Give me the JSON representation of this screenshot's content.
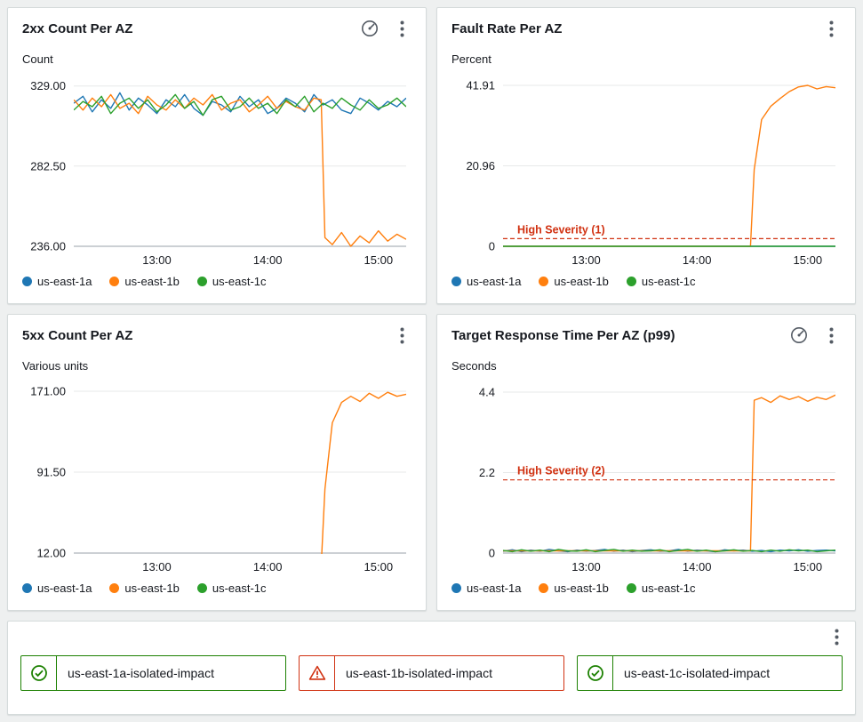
{
  "colors": {
    "series_blue": "#1f77b4",
    "series_orange": "#ff7f0e",
    "series_green": "#2ca02c",
    "threshold_red": "#d13212",
    "status_ok_green": "#1d8102",
    "status_alarm_red": "#d13212",
    "axis_line": "#98a2a8",
    "grid_line": "#e7e9e9",
    "text": "#16191f",
    "icon_gray": "#545b64",
    "panel_bg": "#ffffff",
    "page_bg": "#eef0f0"
  },
  "chart_data": [
    {
      "type": "line",
      "title": "2xx Count Per AZ",
      "unit": "Count",
      "y": {
        "min": 236,
        "max": 334,
        "ticks": [
          {
            "label": "329.00",
            "value": 329
          },
          {
            "label": "282.50",
            "value": 282.5
          },
          {
            "label": "236.00",
            "value": 236
          }
        ]
      },
      "x": {
        "min": 0,
        "max": 180,
        "start": 0,
        "step": 5,
        "ticks": [
          {
            "label": "13:00",
            "value": 45
          },
          {
            "label": "14:00",
            "value": 105
          },
          {
            "label": "15:00",
            "value": 165
          }
        ]
      },
      "series": [
        {
          "name": "us-east-1a",
          "color": "#1f77b4",
          "values": [
            319,
            323,
            314,
            321,
            316,
            325,
            315,
            322,
            318,
            313,
            321,
            317,
            324,
            316,
            312,
            320,
            318,
            314,
            323,
            317,
            321,
            313,
            316,
            322,
            319,
            314,
            324,
            318,
            321,
            315,
            313,
            322,
            319,
            315,
            320,
            317,
            322
          ]
        },
        {
          "name": "us-east-1b",
          "color": "#ff7f0e",
          "x": [
            0,
            5,
            10,
            15,
            20,
            25,
            30,
            35,
            40,
            45,
            50,
            55,
            60,
            65,
            70,
            75,
            80,
            85,
            90,
            95,
            100,
            105,
            110,
            115,
            120,
            125,
            130,
            134,
            136,
            140,
            145,
            150,
            155,
            160,
            165,
            170,
            175,
            180
          ],
          "values": [
            321,
            315,
            322,
            317,
            324,
            316,
            319,
            313,
            323,
            318,
            315,
            321,
            316,
            322,
            318,
            324,
            315,
            319,
            321,
            314,
            318,
            323,
            316,
            320,
            317,
            315,
            322,
            321,
            241,
            237,
            244,
            236,
            242,
            238,
            245,
            239,
            243,
            240
          ]
        },
        {
          "name": "us-east-1c",
          "color": "#2ca02c",
          "values": [
            315,
            320,
            317,
            323,
            313,
            319,
            322,
            316,
            321,
            314,
            318,
            324,
            316,
            320,
            312,
            321,
            323,
            315,
            317,
            322,
            316,
            319,
            313,
            321,
            317,
            323,
            314,
            319,
            316,
            322,
            318,
            315,
            321,
            316,
            318,
            322,
            317
          ]
        }
      ],
      "legend": [
        {
          "label": "us-east-1a",
          "color": "#1f77b4"
        },
        {
          "label": "us-east-1b",
          "color": "#ff7f0e"
        },
        {
          "label": "us-east-1c",
          "color": "#2ca02c"
        }
      ]
    },
    {
      "type": "line",
      "title": "Fault Rate Per AZ",
      "unit": "Percent",
      "threshold": {
        "value": 2,
        "label": "High Severity (1)",
        "color": "#d13212"
      },
      "y": {
        "min": 0,
        "max": 44,
        "ticks": [
          {
            "label": "41.91",
            "value": 41.91
          },
          {
            "label": "20.96",
            "value": 20.96
          },
          {
            "label": "0",
            "value": 0
          }
        ]
      },
      "x": {
        "min": 0,
        "max": 180,
        "start": 0,
        "step": 5,
        "ticks": [
          {
            "label": "13:00",
            "value": 45
          },
          {
            "label": "14:00",
            "value": 105
          },
          {
            "label": "15:00",
            "value": 165
          }
        ]
      },
      "series": [
        {
          "name": "us-east-1a",
          "color": "#1f77b4",
          "values": [
            0,
            0,
            0,
            0,
            0,
            0,
            0,
            0,
            0,
            0,
            0,
            0,
            0,
            0,
            0,
            0,
            0,
            0,
            0,
            0,
            0,
            0,
            0,
            0,
            0,
            0,
            0,
            0,
            0,
            0,
            0,
            0,
            0,
            0,
            0,
            0,
            0
          ]
        },
        {
          "name": "us-east-1b",
          "color": "#ff7f0e",
          "x": [
            0,
            5,
            10,
            15,
            20,
            25,
            30,
            35,
            40,
            45,
            50,
            55,
            60,
            65,
            70,
            75,
            80,
            85,
            90,
            95,
            100,
            105,
            110,
            115,
            120,
            125,
            130,
            134,
            136,
            140,
            145,
            150,
            155,
            160,
            165,
            170,
            175,
            180
          ],
          "values": [
            0,
            0,
            0,
            0,
            0,
            0,
            0,
            0,
            0,
            0,
            0,
            0,
            0,
            0,
            0,
            0,
            0,
            0,
            0,
            0,
            0,
            0,
            0,
            0,
            0,
            0,
            0,
            0,
            20,
            33,
            36.5,
            38.5,
            40.3,
            41.5,
            41.91,
            41,
            41.6,
            41.3
          ]
        },
        {
          "name": "us-east-1c",
          "color": "#2ca02c",
          "values": [
            0,
            0,
            0,
            0,
            0,
            0,
            0,
            0,
            0,
            0,
            0,
            0,
            0,
            0,
            0,
            0,
            0,
            0,
            0,
            0,
            0,
            0,
            0,
            0,
            0,
            0,
            0,
            0,
            0,
            0,
            0,
            0,
            0,
            0,
            0,
            0,
            0
          ]
        }
      ],
      "legend": [
        {
          "label": "us-east-1a",
          "color": "#1f77b4"
        },
        {
          "label": "us-east-1b",
          "color": "#ff7f0e"
        },
        {
          "label": "us-east-1c",
          "color": "#2ca02c"
        }
      ]
    },
    {
      "type": "line",
      "title": "5xx Count Per AZ",
      "unit": "Various units",
      "y": {
        "min": 12,
        "max": 178,
        "ticks": [
          {
            "label": "171.00",
            "value": 171
          },
          {
            "label": "91.50",
            "value": 91.5
          },
          {
            "label": "12.00",
            "value": 12
          }
        ]
      },
      "x": {
        "min": 0,
        "max": 180,
        "start": 0,
        "step": 5,
        "ticks": [
          {
            "label": "13:00",
            "value": 45
          },
          {
            "label": "14:00",
            "value": 105
          },
          {
            "label": "15:00",
            "value": 165
          }
        ]
      },
      "series": [
        {
          "name": "us-east-1a",
          "color": "#1f77b4",
          "values": [
            0,
            0,
            0,
            0,
            0,
            0,
            0,
            0,
            0,
            0,
            0,
            0,
            0,
            0,
            0,
            0,
            0,
            0,
            0,
            0,
            0,
            0,
            0,
            0,
            0,
            0,
            0,
            0,
            0,
            0,
            0,
            0,
            0,
            0,
            0,
            0,
            0
          ]
        },
        {
          "name": "us-east-1b",
          "color": "#ff7f0e",
          "x": [
            0,
            5,
            10,
            15,
            20,
            25,
            30,
            35,
            40,
            45,
            50,
            55,
            60,
            65,
            70,
            75,
            80,
            85,
            90,
            95,
            100,
            105,
            110,
            115,
            120,
            125,
            130,
            134,
            136,
            140,
            145,
            150,
            155,
            160,
            165,
            170,
            175,
            180
          ],
          "values": [
            0,
            0,
            0,
            0,
            0,
            0,
            0,
            0,
            0,
            0,
            0,
            0,
            0,
            0,
            0,
            0,
            0,
            0,
            0,
            0,
            0,
            0,
            0,
            0,
            0,
            0,
            0,
            0,
            75,
            140,
            160,
            166,
            161,
            169,
            164,
            170,
            166,
            168
          ]
        },
        {
          "name": "us-east-1c",
          "color": "#2ca02c",
          "values": [
            0,
            0,
            0,
            0,
            0,
            0,
            0,
            0,
            0,
            0,
            0,
            0,
            0,
            0,
            0,
            0,
            0,
            0,
            0,
            0,
            0,
            0,
            0,
            0,
            0,
            0,
            0,
            0,
            0,
            0,
            0,
            0,
            0,
            0,
            0,
            0,
            0
          ]
        }
      ],
      "legend": [
        {
          "label": "us-east-1a",
          "color": "#1f77b4"
        },
        {
          "label": "us-east-1b",
          "color": "#ff7f0e"
        },
        {
          "label": "us-east-1c",
          "color": "#2ca02c"
        }
      ]
    },
    {
      "type": "line",
      "title": "Target Response Time Per AZ (p99)",
      "unit": "Seconds",
      "threshold": {
        "value": 2,
        "label": "High Severity (2)",
        "color": "#d13212"
      },
      "y": {
        "min": 0,
        "max": 4.62,
        "ticks": [
          {
            "label": "4.4",
            "value": 4.4
          },
          {
            "label": "2.2",
            "value": 2.2
          },
          {
            "label": "0",
            "value": 0
          }
        ]
      },
      "x": {
        "min": 0,
        "max": 180,
        "start": 0,
        "step": 5,
        "ticks": [
          {
            "label": "13:00",
            "value": 45
          },
          {
            "label": "14:00",
            "value": 105
          },
          {
            "label": "15:00",
            "value": 165
          }
        ]
      },
      "series": [
        {
          "name": "us-east-1a",
          "color": "#1f77b4",
          "values": [
            0.05,
            0.09,
            0.04,
            0.08,
            0.05,
            0.1,
            0.06,
            0.04,
            0.08,
            0.05,
            0.07,
            0.1,
            0.05,
            0.08,
            0.04,
            0.07,
            0.09,
            0.05,
            0.06,
            0.1,
            0.05,
            0.08,
            0.06,
            0.04,
            0.09,
            0.06,
            0.08,
            0.05,
            0.07,
            0.04,
            0.08,
            0.06,
            0.09,
            0.05,
            0.07,
            0.08,
            0.06
          ]
        },
        {
          "name": "us-east-1b",
          "color": "#ff7f0e",
          "x": [
            0,
            5,
            10,
            15,
            20,
            25,
            30,
            35,
            40,
            45,
            50,
            55,
            60,
            65,
            70,
            75,
            80,
            85,
            90,
            95,
            100,
            105,
            110,
            115,
            120,
            125,
            130,
            134,
            136,
            140,
            145,
            150,
            155,
            160,
            165,
            170,
            175,
            180
          ],
          "values": [
            0.06,
            0.06,
            0.06,
            0.06,
            0.06,
            0.06,
            0.06,
            0.06,
            0.06,
            0.06,
            0.06,
            0.06,
            0.06,
            0.06,
            0.06,
            0.06,
            0.06,
            0.06,
            0.06,
            0.06,
            0.06,
            0.06,
            0.06,
            0.06,
            0.06,
            0.06,
            0.06,
            0.06,
            4.18,
            4.25,
            4.12,
            4.3,
            4.2,
            4.28,
            4.15,
            4.26,
            4.2,
            4.32
          ]
        },
        {
          "name": "us-east-1c",
          "color": "#2ca02c",
          "values": [
            0.07,
            0.04,
            0.09,
            0.05,
            0.08,
            0.04,
            0.1,
            0.06,
            0.05,
            0.09,
            0.04,
            0.07,
            0.1,
            0.05,
            0.08,
            0.05,
            0.06,
            0.09,
            0.04,
            0.07,
            0.1,
            0.05,
            0.08,
            0.04,
            0.06,
            0.09,
            0.05,
            0.07,
            0.04,
            0.08,
            0.05,
            0.09,
            0.06,
            0.08,
            0.04,
            0.06,
            0.08
          ]
        }
      ],
      "legend": [
        {
          "label": "us-east-1a",
          "color": "#1f77b4"
        },
        {
          "label": "us-east-1b",
          "color": "#ff7f0e"
        },
        {
          "label": "us-east-1c",
          "color": "#2ca02c"
        }
      ]
    }
  ],
  "alarms": {
    "items": [
      {
        "label": "us-east-1a-isolated-impact",
        "status": "ok"
      },
      {
        "label": "us-east-1b-isolated-impact",
        "status": "alarm"
      },
      {
        "label": "us-east-1c-isolated-impact",
        "status": "ok"
      }
    ]
  }
}
